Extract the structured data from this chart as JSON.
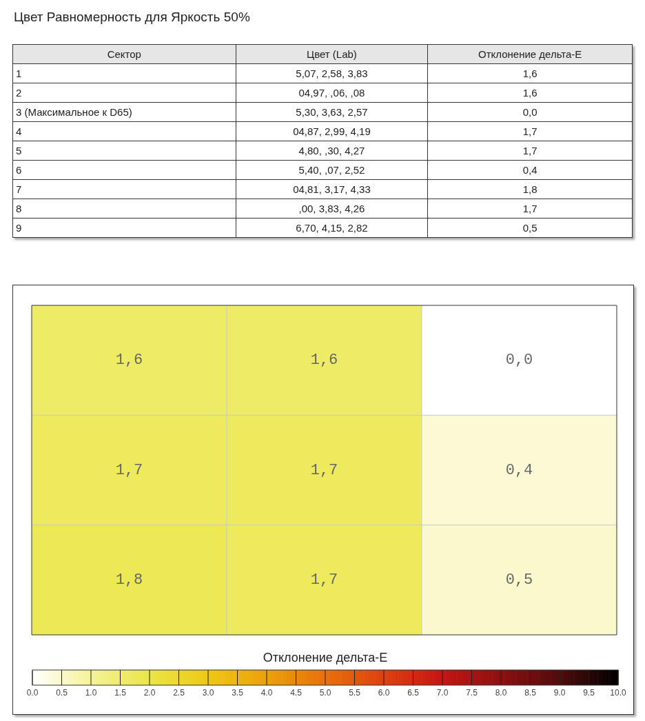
{
  "chart_data": [
    {
      "type": "other",
      "title": "Цвет Равномерность для Яркость 50%",
      "annotations": [
        "Сектор",
        "Цвет (Lab)",
        "Отклонение дельта-E",
        "1",
        "5,07,   2,58,   3,83",
        "1,6",
        "2",
        "04,97,    ,06,    ,08",
        "1,6",
        "3 (Максимальное к D65)",
        "5,30,   3,63,   2,57",
        "0,0",
        "4",
        "04,87,   2,99,   4,19",
        "1,7",
        "5",
        "4,80,    ,30,   4,27",
        "1,7",
        "6",
        "5,40,    ,07,   2,52",
        "0,4",
        "7",
        "04,81,   3,17,   4,33",
        "1,8",
        "8",
        " ,00,   3,83,   4,26",
        "1,7",
        "9",
        "6,70,   4,15,   2,82",
        "0,5"
      ]
    },
    {
      "type": "heatmap",
      "categories": [
        null,
        null,
        null
      ],
      "y_categories": [
        null,
        null,
        null
      ],
      "cells": [
        [
          1.6,
          1.6,
          0.0
        ],
        [
          1.7,
          1.7,
          0.4
        ],
        [
          1.8,
          1.7,
          0.5
        ]
      ],
      "cell_labels": [
        [
          "1,6",
          "1,6",
          "0,0"
        ],
        [
          "1,7",
          "1,7",
          "0,4"
        ],
        [
          "1,8",
          "1,7",
          "0,5"
        ]
      ],
      "clabel": "Отклонение дельта-E",
      "clim": [
        0,
        10
      ],
      "cticks": [
        {
          "value": 0,
          "label": "0.0"
        },
        {
          "value": 0.5,
          "label": "0.5"
        },
        {
          "value": 1,
          "label": "1.0"
        },
        {
          "value": 1.5,
          "label": "1.5"
        },
        {
          "value": 2,
          "label": "2.0"
        },
        {
          "value": 2.5,
          "label": "2.5"
        },
        {
          "value": 3,
          "label": "3.0"
        },
        {
          "value": 3.5,
          "label": "3.5"
        },
        {
          "value": 4,
          "label": "4.0"
        },
        {
          "value": 4.5,
          "label": "4.5"
        },
        {
          "value": 5,
          "label": "5.0"
        },
        {
          "value": 5.5,
          "label": "5.5"
        },
        {
          "value": 6,
          "label": "6.0"
        },
        {
          "value": 6.5,
          "label": "6.5"
        },
        {
          "value": 7,
          "label": "7.0"
        },
        {
          "value": 7.5,
          "label": "7.5"
        },
        {
          "value": 8,
          "label": "8.0"
        },
        {
          "value": 8.5,
          "label": "8.5"
        },
        {
          "value": 9,
          "label": "9.0"
        },
        {
          "value": 9.5,
          "label": "9.5"
        },
        {
          "value": 10,
          "label": "10.0"
        }
      ],
      "grid": true
    }
  ]
}
